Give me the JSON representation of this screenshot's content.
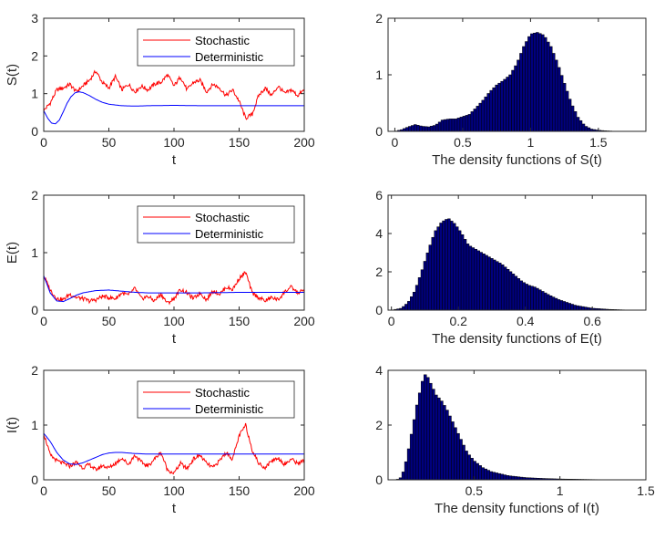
{
  "colors": {
    "stochastic": "#ff0000",
    "deterministic": "#0000ff",
    "bar_fill": "#00007f",
    "bar_edge": "#000000",
    "axis": "#262626"
  },
  "chart_data": [
    {
      "id": "S_time",
      "type": "line",
      "xlabel": "t",
      "ylabel": "S(t)",
      "xlim": [
        0,
        200
      ],
      "ylim": [
        0,
        3
      ],
      "xticks": [
        "0",
        "50",
        "100",
        "150",
        "200"
      ],
      "xtick_values": [
        0,
        50,
        100,
        150,
        200
      ],
      "yticks": [
        "0",
        "1",
        "2",
        "3"
      ],
      "ytick_values": [
        0,
        1,
        2,
        3
      ],
      "legend": [
        "Stochastic",
        "Deterministic"
      ],
      "series": [
        {
          "name": "Stochastic",
          "x": [
            0,
            5,
            10,
            15,
            20,
            25,
            30,
            35,
            40,
            45,
            50,
            55,
            60,
            65,
            70,
            75,
            80,
            85,
            90,
            95,
            100,
            105,
            110,
            115,
            120,
            125,
            130,
            135,
            140,
            145,
            150,
            155,
            160,
            165,
            170,
            175,
            180,
            185,
            190,
            195,
            200
          ],
          "y": [
            0.55,
            0.75,
            1.1,
            1.15,
            1.25,
            1.05,
            1.2,
            1.35,
            1.6,
            1.3,
            1.15,
            1.45,
            1.1,
            1.25,
            1.05,
            1.2,
            1.1,
            1.25,
            1.3,
            1.5,
            1.2,
            1.45,
            1.1,
            1.3,
            1.35,
            1.05,
            1.25,
            1.15,
            0.95,
            1.1,
            0.8,
            0.35,
            0.45,
            0.95,
            1.15,
            0.95,
            1.2,
            1.0,
            1.1,
            0.95,
            1.1
          ]
        },
        {
          "name": "Deterministic",
          "x": [
            0,
            3,
            6,
            9,
            12,
            15,
            18,
            21,
            24,
            27,
            30,
            35,
            40,
            45,
            50,
            60,
            70,
            80,
            100,
            120,
            150,
            200
          ],
          "y": [
            0.55,
            0.35,
            0.22,
            0.2,
            0.3,
            0.52,
            0.75,
            0.92,
            1.02,
            1.05,
            1.03,
            0.95,
            0.85,
            0.77,
            0.72,
            0.68,
            0.67,
            0.68,
            0.69,
            0.68,
            0.68,
            0.68
          ]
        }
      ]
    },
    {
      "id": "S_density",
      "type": "bar",
      "xlabel": "The density functions of S(t)",
      "ylabel": "",
      "xlim": [
        -0.05,
        1.85
      ],
      "ylim": [
        0,
        2
      ],
      "xticks": [
        "0",
        "0.5",
        "1",
        "1.5"
      ],
      "xtick_values": [
        0,
        0.5,
        1,
        1.5
      ],
      "yticks": [
        "0",
        "1",
        "2"
      ],
      "ytick_values": [
        0,
        1,
        2
      ],
      "bin_width": 0.02,
      "profile_x": [
        0.0,
        0.05,
        0.1,
        0.15,
        0.2,
        0.25,
        0.3,
        0.35,
        0.4,
        0.45,
        0.5,
        0.55,
        0.6,
        0.65,
        0.7,
        0.75,
        0.8,
        0.85,
        0.9,
        0.95,
        1.0,
        1.05,
        1.1,
        1.15,
        1.2,
        1.25,
        1.3,
        1.35,
        1.4,
        1.45,
        1.5,
        1.55,
        1.6,
        1.65,
        1.7,
        1.75,
        1.8,
        1.85
      ],
      "profile_y": [
        0.0,
        0.03,
        0.08,
        0.12,
        0.09,
        0.08,
        0.11,
        0.2,
        0.22,
        0.22,
        0.26,
        0.3,
        0.42,
        0.55,
        0.7,
        0.82,
        0.9,
        1.0,
        1.2,
        1.5,
        1.72,
        1.75,
        1.7,
        1.5,
        1.2,
        0.85,
        0.5,
        0.25,
        0.1,
        0.04,
        0.02,
        0.01,
        0.005,
        0.0,
        0.0,
        0.0,
        0.0,
        0.0
      ]
    },
    {
      "id": "E_time",
      "type": "line",
      "xlabel": "t",
      "ylabel": "E(t)",
      "xlim": [
        0,
        200
      ],
      "ylim": [
        0,
        2
      ],
      "xticks": [
        "0",
        "50",
        "100",
        "150",
        "200"
      ],
      "xtick_values": [
        0,
        50,
        100,
        150,
        200
      ],
      "yticks": [
        "0",
        "1",
        "2"
      ],
      "ytick_values": [
        0,
        1,
        2
      ],
      "legend": [
        "Stochastic",
        "Deterministic"
      ],
      "series": [
        {
          "name": "Stochastic",
          "x": [
            0,
            5,
            10,
            15,
            20,
            25,
            30,
            35,
            40,
            45,
            50,
            55,
            60,
            65,
            70,
            75,
            80,
            85,
            90,
            95,
            100,
            105,
            110,
            115,
            120,
            125,
            130,
            135,
            140,
            145,
            150,
            155,
            160,
            165,
            170,
            175,
            180,
            185,
            190,
            195,
            200
          ],
          "y": [
            0.6,
            0.35,
            0.2,
            0.18,
            0.28,
            0.22,
            0.2,
            0.16,
            0.18,
            0.24,
            0.22,
            0.2,
            0.3,
            0.26,
            0.38,
            0.2,
            0.24,
            0.16,
            0.28,
            0.12,
            0.2,
            0.36,
            0.3,
            0.2,
            0.3,
            0.18,
            0.34,
            0.28,
            0.4,
            0.36,
            0.55,
            0.66,
            0.3,
            0.22,
            0.16,
            0.22,
            0.18,
            0.32,
            0.4,
            0.3,
            0.35
          ]
        },
        {
          "name": "Deterministic",
          "x": [
            0,
            5,
            10,
            15,
            20,
            25,
            30,
            40,
            50,
            60,
            70,
            80,
            100,
            120,
            150,
            200
          ],
          "y": [
            0.6,
            0.3,
            0.16,
            0.15,
            0.2,
            0.26,
            0.3,
            0.34,
            0.35,
            0.33,
            0.31,
            0.3,
            0.3,
            0.3,
            0.31,
            0.31
          ]
        }
      ]
    },
    {
      "id": "E_density",
      "type": "bar",
      "xlabel": "The density functions of E(t)",
      "ylabel": "",
      "xlim": [
        -0.01,
        0.76
      ],
      "ylim": [
        0,
        6
      ],
      "xticks": [
        "0",
        "0.2",
        "0.4",
        "0.6"
      ],
      "xtick_values": [
        0,
        0.2,
        0.4,
        0.6
      ],
      "yticks": [
        "0",
        "2",
        "4",
        "6"
      ],
      "ytick_values": [
        0,
        2,
        4,
        6
      ],
      "bin_width": 0.008,
      "profile_x": [
        0.0,
        0.03,
        0.05,
        0.07,
        0.09,
        0.11,
        0.13,
        0.15,
        0.17,
        0.19,
        0.21,
        0.23,
        0.25,
        0.27,
        0.29,
        0.31,
        0.33,
        0.35,
        0.37,
        0.39,
        0.41,
        0.43,
        0.45,
        0.47,
        0.5,
        0.55,
        0.6,
        0.65,
        0.7,
        0.75
      ],
      "profile_y": [
        0.0,
        0.1,
        0.4,
        1.0,
        2.0,
        3.1,
        4.1,
        4.6,
        4.8,
        4.5,
        4.0,
        3.4,
        3.2,
        3.0,
        2.8,
        2.6,
        2.4,
        2.1,
        1.8,
        1.5,
        1.3,
        1.2,
        1.0,
        0.8,
        0.55,
        0.25,
        0.1,
        0.04,
        0.01,
        0.0
      ]
    },
    {
      "id": "I_time",
      "type": "line",
      "xlabel": "t",
      "ylabel": "I(t)",
      "xlim": [
        0,
        200
      ],
      "ylim": [
        0,
        2
      ],
      "xticks": [
        "0",
        "50",
        "100",
        "150",
        "200"
      ],
      "xtick_values": [
        0,
        50,
        100,
        150,
        200
      ],
      "yticks": [
        "0",
        "1",
        "2"
      ],
      "ytick_values": [
        0,
        1,
        2
      ],
      "legend": [
        "Stochastic",
        "Deterministic"
      ],
      "series": [
        {
          "name": "Stochastic",
          "x": [
            0,
            5,
            10,
            15,
            20,
            25,
            30,
            35,
            40,
            45,
            50,
            55,
            60,
            65,
            70,
            75,
            80,
            85,
            90,
            95,
            100,
            105,
            110,
            115,
            120,
            125,
            130,
            135,
            140,
            145,
            150,
            155,
            160,
            165,
            170,
            175,
            180,
            185,
            190,
            195,
            200
          ],
          "y": [
            0.85,
            0.45,
            0.35,
            0.3,
            0.25,
            0.32,
            0.22,
            0.28,
            0.18,
            0.26,
            0.22,
            0.3,
            0.4,
            0.28,
            0.45,
            0.32,
            0.25,
            0.38,
            0.5,
            0.18,
            0.12,
            0.3,
            0.2,
            0.38,
            0.45,
            0.3,
            0.22,
            0.35,
            0.5,
            0.38,
            0.8,
            1.0,
            0.55,
            0.3,
            0.22,
            0.35,
            0.4,
            0.28,
            0.38,
            0.3,
            0.35
          ]
        },
        {
          "name": "Deterministic",
          "x": [
            0,
            5,
            10,
            15,
            20,
            25,
            30,
            35,
            40,
            45,
            50,
            55,
            60,
            70,
            80,
            100,
            120,
            150,
            200
          ],
          "y": [
            0.85,
            0.7,
            0.5,
            0.36,
            0.29,
            0.28,
            0.31,
            0.36,
            0.41,
            0.46,
            0.49,
            0.5,
            0.5,
            0.48,
            0.47,
            0.47,
            0.47,
            0.47,
            0.47
          ]
        }
      ]
    },
    {
      "id": "I_density",
      "type": "bar",
      "xlabel": "The density functions of I(t)",
      "ylabel": "",
      "xlim": [
        0.0,
        1.5
      ],
      "ylim": [
        0,
        4
      ],
      "xticks": [
        "0.5",
        "1",
        "1.5"
      ],
      "xtick_values": [
        0.5,
        1,
        1.5
      ],
      "yticks": [
        "0",
        "2",
        "4"
      ],
      "ytick_values": [
        0,
        2,
        4
      ],
      "bin_width": 0.016,
      "profile_x": [
        0.0,
        0.05,
        0.08,
        0.11,
        0.14,
        0.17,
        0.2,
        0.22,
        0.25,
        0.28,
        0.31,
        0.34,
        0.37,
        0.4,
        0.43,
        0.46,
        0.5,
        0.55,
        0.6,
        0.7,
        0.8,
        0.9,
        1.0,
        1.1,
        1.2,
        1.3,
        1.4,
        1.5
      ],
      "profile_y": [
        0.0,
        0.0,
        0.1,
        0.8,
        1.8,
        2.8,
        3.6,
        3.9,
        3.5,
        3.1,
        2.9,
        2.6,
        2.2,
        1.8,
        1.4,
        1.0,
        0.7,
        0.45,
        0.3,
        0.15,
        0.08,
        0.05,
        0.03,
        0.02,
        0.01,
        0.005,
        0.0,
        0.0
      ]
    }
  ]
}
